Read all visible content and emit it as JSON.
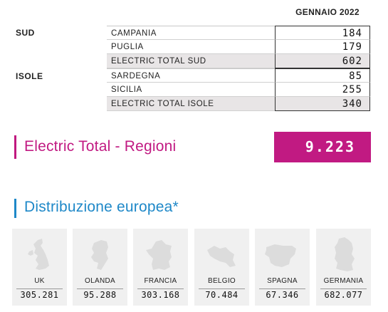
{
  "table": {
    "column_header": "GENNAIO 2022",
    "groups": [
      {
        "label": "SUD",
        "rows": [
          {
            "name": "CAMPANIA",
            "value": "184"
          },
          {
            "name": "PUGLIA",
            "value": "179"
          },
          {
            "name": "ELECTRIC TOTAL SUD",
            "value": "602"
          }
        ]
      },
      {
        "label": "ISOLE",
        "rows": [
          {
            "name": "SARDEGNA",
            "value": "85"
          },
          {
            "name": "SICILIA",
            "value": "255"
          },
          {
            "name": "ELECTRIC TOTAL ISOLE",
            "value": "340"
          }
        ]
      }
    ]
  },
  "regions_total": {
    "title": "Electric Total - Regioni",
    "value": "9.223"
  },
  "europe": {
    "title": "Distribuzione europea*",
    "countries": [
      {
        "name": "UK",
        "value": "305.281",
        "icon": "uk-map-icon"
      },
      {
        "name": "OLANDA",
        "value": "95.288",
        "icon": "netherlands-map-icon"
      },
      {
        "name": "FRANCIA",
        "value": "303.168",
        "icon": "france-map-icon"
      },
      {
        "name": "BELGIO",
        "value": "70.484",
        "icon": "belgium-map-icon"
      },
      {
        "name": "SPAGNA",
        "value": "67.346",
        "icon": "spain-map-icon"
      },
      {
        "name": "GERMANIA",
        "value": "682.077",
        "icon": "germany-map-icon"
      }
    ]
  },
  "colors": {
    "magenta": "#c11a82",
    "blue": "#1e88c8",
    "total_row_bg": "#e8e5e6",
    "card_bg": "#f0f0f0",
    "map_fill": "#dcdcdc"
  }
}
